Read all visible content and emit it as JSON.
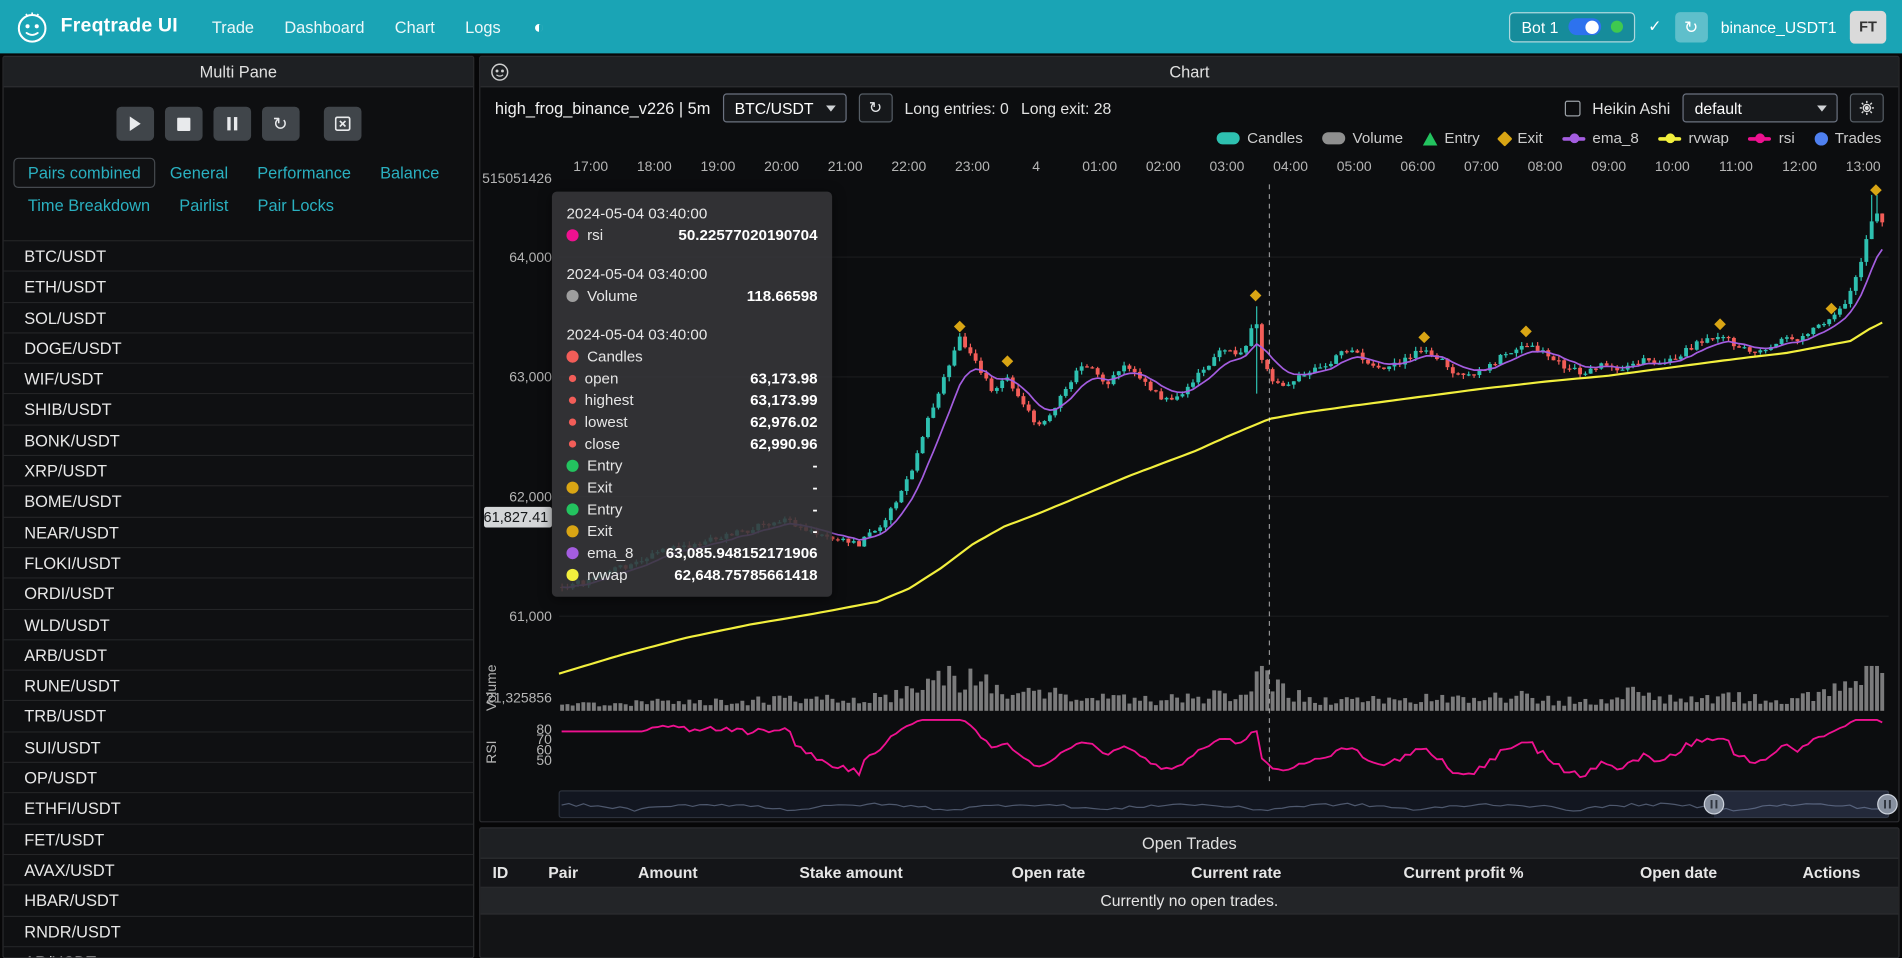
{
  "navbar": {
    "brand": "Freqtrade UI",
    "links": [
      "Trade",
      "Dashboard",
      "Chart",
      "Logs"
    ],
    "bot": {
      "name": "Bot 1",
      "online": true
    },
    "login_info": "binance_USDT1",
    "avatar": "FT"
  },
  "multi_pane": {
    "title": "Multi Pane",
    "tabs": [
      "Pairs combined",
      "General",
      "Performance",
      "Balance",
      "Time Breakdown",
      "Pairlist",
      "Pair Locks"
    ],
    "active_tab": "Pairs combined",
    "pairs": [
      "BTC/USDT",
      "ETH/USDT",
      "SOL/USDT",
      "DOGE/USDT",
      "WIF/USDT",
      "SHIB/USDT",
      "BONK/USDT",
      "XRP/USDT",
      "BOME/USDT",
      "NEAR/USDT",
      "FLOKI/USDT",
      "ORDI/USDT",
      "WLD/USDT",
      "ARB/USDT",
      "RUNE/USDT",
      "TRB/USDT",
      "SUI/USDT",
      "OP/USDT",
      "ETHFI/USDT",
      "FET/USDT",
      "AVAX/USDT",
      "HBAR/USDT",
      "RNDR/USDT",
      "AR/USDT"
    ]
  },
  "chart_panel": {
    "title": "Chart",
    "strategy": "high_frog_binance_v226 | 5m",
    "pair_select": "BTC/USDT",
    "entries_text": "Long entries: 0",
    "exits_text": "Long exit: 28",
    "heikin_ashi_label": "Heikin Ashi",
    "plot_config_select": "default",
    "legend": [
      {
        "label": "Candles",
        "type": "pill",
        "color": "#2ec0b0"
      },
      {
        "label": "Volume",
        "type": "pill",
        "color": "#8f8f8f"
      },
      {
        "label": "Entry",
        "type": "tri",
        "color": "#23c35f"
      },
      {
        "label": "Exit",
        "type": "dia",
        "color": "#d9a514"
      },
      {
        "label": "ema_8",
        "type": "line",
        "color": "#a45de0"
      },
      {
        "label": "rvwap",
        "type": "line",
        "color": "#f2ef3d"
      },
      {
        "label": "rsi",
        "type": "line",
        "color": "#ef1190"
      },
      {
        "label": "Trades",
        "type": "dot",
        "color": "#4f80f0"
      }
    ]
  },
  "chart_data": {
    "type": "candlestick",
    "timeframe": "5m",
    "x_labels": [
      "17:00",
      "18:00",
      "19:00",
      "20:00",
      "21:00",
      "22:00",
      "23:00",
      "4",
      "01:00",
      "02:00",
      "03:00",
      "04:00",
      "05:00",
      "06:00",
      "07:00",
      "08:00",
      "09:00",
      "10:00",
      "11:00",
      "12:00",
      "13:00"
    ],
    "y_labels": [
      {
        "text": "64,000",
        "price": 64000
      },
      {
        "text": "63,000",
        "price": 63000
      },
      {
        "text": "62,000",
        "price": 62000
      },
      {
        "text": "61,000",
        "price": 61000
      }
    ],
    "y_top_label": "515051426",
    "volume_axis_label": "21,325856",
    "rsi_labels": [
      80,
      70,
      60,
      50
    ],
    "pane_labels": {
      "volume": "Volume",
      "rsi": "RSI"
    },
    "axis_price_marker": "61,827.41",
    "axis_price_marker_value": 61827.41,
    "crosshair_hour": 10.6667,
    "close_anchors": [
      [
        -0.5,
        61230
      ],
      [
        0,
        61300
      ],
      [
        1,
        61520
      ],
      [
        2,
        61650
      ],
      [
        3,
        61800
      ],
      [
        3.6,
        61700
      ],
      [
        4.2,
        61600
      ],
      [
        4.6,
        61780
      ],
      [
        5,
        62150
      ],
      [
        5.3,
        62650
      ],
      [
        5.6,
        63050
      ],
      [
        5.8,
        63330
      ],
      [
        6.05,
        63140
      ],
      [
        6.3,
        62870
      ],
      [
        6.5,
        63020
      ],
      [
        6.75,
        62790
      ],
      [
        7.05,
        62580
      ],
      [
        7.3,
        62740
      ],
      [
        7.6,
        63020
      ],
      [
        7.85,
        63120
      ],
      [
        8.1,
        62930
      ],
      [
        8.4,
        63080
      ],
      [
        8.7,
        62950
      ],
      [
        9,
        62800
      ],
      [
        9.3,
        62880
      ],
      [
        9.6,
        63060
      ],
      [
        9.95,
        63230
      ],
      [
        10.2,
        63160
      ],
      [
        10.42,
        63430
      ],
      [
        10.55,
        63150
      ],
      [
        10.67,
        62990
      ],
      [
        10.95,
        62930
      ],
      [
        11.3,
        63040
      ],
      [
        11.6,
        63120
      ],
      [
        11.9,
        63230
      ],
      [
        12.2,
        63140
      ],
      [
        12.5,
        63060
      ],
      [
        12.8,
        63140
      ],
      [
        13.1,
        63240
      ],
      [
        13.4,
        63120
      ],
      [
        13.7,
        62990
      ],
      [
        14,
        63050
      ],
      [
        14.35,
        63180
      ],
      [
        14.7,
        63280
      ],
      [
        15,
        63200
      ],
      [
        15.3,
        63080
      ],
      [
        15.6,
        63030
      ],
      [
        15.9,
        63100
      ],
      [
        16.2,
        63060
      ],
      [
        16.5,
        63140
      ],
      [
        16.8,
        63100
      ],
      [
        17.1,
        63180
      ],
      [
        17.45,
        63300
      ],
      [
        17.75,
        63340
      ],
      [
        18.05,
        63260
      ],
      [
        18.35,
        63200
      ],
      [
        18.65,
        63290
      ],
      [
        18.95,
        63320
      ],
      [
        19.25,
        63400
      ],
      [
        19.5,
        63480
      ],
      [
        19.7,
        63580
      ],
      [
        19.9,
        63850
      ],
      [
        20.05,
        64150
      ],
      [
        20.2,
        64380
      ],
      [
        20.4,
        64250
      ]
    ],
    "rvwap_anchors": [
      [
        -0.5,
        60520
      ],
      [
        0.5,
        60680
      ],
      [
        1.5,
        60820
      ],
      [
        2.5,
        60930
      ],
      [
        3.5,
        61020
      ],
      [
        4.5,
        61120
      ],
      [
        5,
        61230
      ],
      [
        5.5,
        61400
      ],
      [
        6,
        61600
      ],
      [
        6.5,
        61750
      ],
      [
        7,
        61850
      ],
      [
        7.5,
        61960
      ],
      [
        8,
        62070
      ],
      [
        8.5,
        62180
      ],
      [
        9,
        62280
      ],
      [
        9.5,
        62380
      ],
      [
        10,
        62500
      ],
      [
        10.67,
        62649
      ],
      [
        11.2,
        62700
      ],
      [
        12,
        62760
      ],
      [
        13,
        62830
      ],
      [
        14,
        62900
      ],
      [
        15,
        62960
      ],
      [
        16,
        63010
      ],
      [
        17,
        63080
      ],
      [
        18,
        63150
      ],
      [
        18.8,
        63200
      ],
      [
        19.4,
        63260
      ],
      [
        19.8,
        63300
      ],
      [
        20.1,
        63400
      ],
      [
        20.4,
        63480
      ]
    ],
    "volume_anchors": [
      [
        -0.5,
        6
      ],
      [
        1,
        7
      ],
      [
        2,
        8
      ],
      [
        3,
        9
      ],
      [
        4,
        10
      ],
      [
        4.8,
        13
      ],
      [
        5.2,
        19
      ],
      [
        5.6,
        26
      ],
      [
        5.9,
        31
      ],
      [
        6.2,
        23
      ],
      [
        6.5,
        17
      ],
      [
        6.9,
        21
      ],
      [
        7.2,
        15
      ],
      [
        7.6,
        11
      ],
      [
        8,
        13
      ],
      [
        8.5,
        10
      ],
      [
        9,
        9
      ],
      [
        9.5,
        11
      ],
      [
        10,
        13
      ],
      [
        10.45,
        31
      ],
      [
        10.7,
        21
      ],
      [
        11,
        13
      ],
      [
        11.5,
        9
      ],
      [
        12,
        10
      ],
      [
        12.5,
        8
      ],
      [
        13,
        11
      ],
      [
        13.5,
        9
      ],
      [
        14,
        10
      ],
      [
        14.5,
        13
      ],
      [
        15,
        9
      ],
      [
        15.5,
        8
      ],
      [
        16,
        10
      ],
      [
        16.3,
        17
      ],
      [
        16.6,
        11
      ],
      [
        17,
        9
      ],
      [
        17.5,
        10
      ],
      [
        18,
        11
      ],
      [
        18.5,
        9
      ],
      [
        19,
        10
      ],
      [
        19.4,
        13
      ],
      [
        19.7,
        19
      ],
      [
        19.9,
        29
      ],
      [
        20.1,
        35
      ],
      [
        20.3,
        31
      ],
      [
        20.45,
        23
      ]
    ],
    "exit_markers": [
      [
        5.8,
        63420
      ],
      [
        6.55,
        63130
      ],
      [
        10.45,
        63680
      ],
      [
        13.1,
        63330
      ],
      [
        14.7,
        63380
      ],
      [
        17.75,
        63440
      ],
      [
        19.5,
        63570
      ],
      [
        20.2,
        64560
      ]
    ],
    "colors": {
      "up": "#2ec0b0",
      "down": "#f25d58",
      "rvwap": "#f2ef3d",
      "ema": "#a45de0",
      "rsi": "#ef1190",
      "volume": "#8f8f8f",
      "entry": "#23c35f",
      "exit": "#d9a514",
      "trades": "#4f80f0"
    }
  },
  "tooltip": {
    "sections": [
      {
        "time": "2024-05-04 03:40:00",
        "rows": [
          {
            "color": "#ef1190",
            "label": "rsi",
            "value": "50.22577020190704"
          }
        ]
      },
      {
        "time": "2024-05-04 03:40:00",
        "rows": [
          {
            "color": "#9e9e9e",
            "label": "Volume",
            "value": "118.66598"
          }
        ]
      },
      {
        "time": "2024-05-04 03:40:00",
        "rows": [
          {
            "color": "#f25d58",
            "label": "Candles",
            "value": ""
          },
          {
            "color": "#f25d58",
            "small": true,
            "label": "open",
            "value": "63,173.98"
          },
          {
            "color": "#f25d58",
            "small": true,
            "label": "highest",
            "value": "63,173.99"
          },
          {
            "color": "#f25d58",
            "small": true,
            "label": "lowest",
            "value": "62,976.02"
          },
          {
            "color": "#f25d58",
            "small": true,
            "label": "close",
            "value": "62,990.96"
          },
          {
            "color": "#23c35f",
            "label": "Entry",
            "value": "-"
          },
          {
            "color": "#d9a514",
            "label": "Exit",
            "value": "-"
          },
          {
            "color": "#23c35f",
            "label": "Entry",
            "value": "-"
          },
          {
            "color": "#d9a514",
            "label": "Exit",
            "value": "-"
          },
          {
            "color": "#a45de0",
            "label": "ema_8",
            "value": "63,085.948152171906"
          },
          {
            "color": "#f2ef3d",
            "label": "rvwap",
            "value": "62,648.75785661418"
          }
        ]
      }
    ]
  },
  "open_trades": {
    "title": "Open Trades",
    "columns": [
      "ID",
      "Pair",
      "Amount",
      "Stake amount",
      "Open rate",
      "Current rate",
      "Current profit %",
      "Open date",
      "Actions"
    ],
    "empty_text": "Currently no open trades."
  }
}
